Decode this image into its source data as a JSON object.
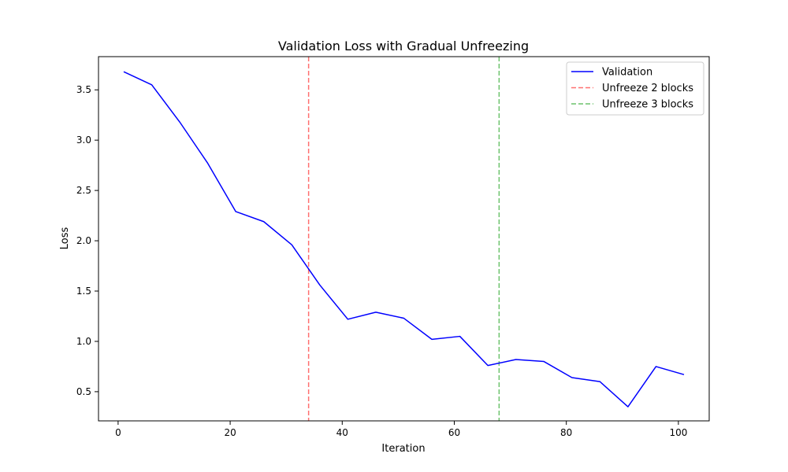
{
  "chart_data": {
    "type": "line",
    "title": "Validation Loss with Gradual Unfreezing",
    "xlabel": "Iteration",
    "ylabel": "Loss",
    "xlim": [
      -3.5,
      105.5
    ],
    "ylim": [
      0.21,
      3.83
    ],
    "xticks": [
      0,
      20,
      40,
      60,
      80,
      100
    ],
    "yticks": [
      0.5,
      1.0,
      1.5,
      2.0,
      2.5,
      3.0,
      3.5
    ],
    "xtick_labels": [
      "0",
      "20",
      "40",
      "60",
      "80",
      "100"
    ],
    "ytick_labels": [
      "0.5",
      "1.0",
      "1.5",
      "2.0",
      "2.5",
      "3.0",
      "3.5"
    ],
    "grid": false,
    "legend_position": "top-right",
    "series": [
      {
        "name": "Validation",
        "color": "#0000ff",
        "style": "solid",
        "x": [
          1,
          6,
          11,
          16,
          21,
          26,
          31,
          36,
          41,
          46,
          51,
          56,
          61,
          66,
          71,
          76,
          81,
          86,
          91,
          96,
          101
        ],
        "y": [
          3.68,
          3.55,
          3.18,
          2.77,
          2.29,
          2.19,
          1.96,
          1.56,
          1.22,
          1.29,
          1.23,
          1.02,
          1.05,
          0.76,
          0.82,
          0.8,
          0.64,
          0.6,
          0.35,
          0.75,
          0.67
        ]
      }
    ],
    "vlines": [
      {
        "name": "Unfreeze 2 blocks",
        "x": 34,
        "color": "#ff7070",
        "style": "dashed"
      },
      {
        "name": "Unfreeze 3 blocks",
        "x": 68,
        "color": "#6cc26c",
        "style": "dashed"
      }
    ]
  }
}
